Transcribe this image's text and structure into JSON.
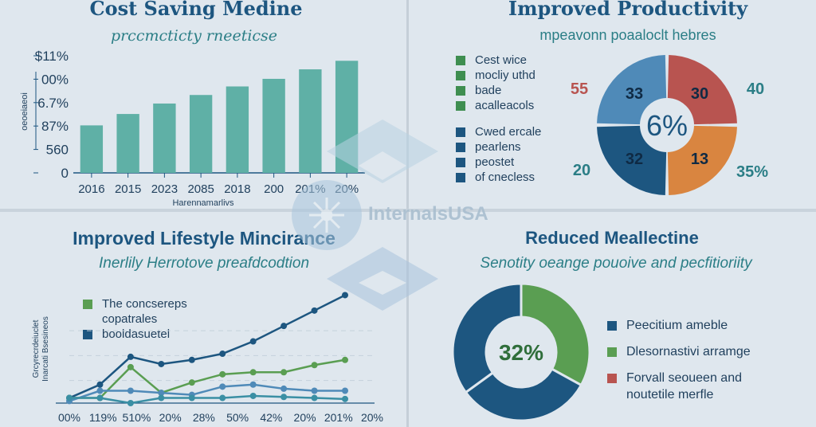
{
  "watermark": {
    "text": "InternalsUSA"
  },
  "colors": {
    "teal": "#5fb0a6",
    "navy": "#1d5680",
    "green": "#5a9e52",
    "orange": "#d98540",
    "red": "#b85450",
    "blue": "#4f8ab8"
  },
  "chart_data": [
    {
      "type": "bar",
      "title": "Cost Saving Medine",
      "subtitle": "prccmcticty rneeticse",
      "xlabel": "Harennamarlivs",
      "ylabel": "oeoeiaeoi",
      "ytick_labels": [
        "$11%",
        "00%",
        "6.7%",
        "87%",
        "560",
        "0"
      ],
      "categories": [
        "2016",
        "2015",
        "2023",
        "2085",
        "2018",
        "200",
        "201%",
        "20%"
      ],
      "values": [
        0.5,
        0.62,
        0.73,
        0.82,
        0.91,
        0.99,
        1.09,
        1.18
      ],
      "ylim": [
        0,
        1.3
      ]
    },
    {
      "type": "pie",
      "title": "Improved Productivity",
      "subtitle": "mpeavonn poaaloclt hebres",
      "center_label": "6%",
      "slices": [
        {
          "label": "30",
          "value": 25,
          "color": "#b85450"
        },
        {
          "label": "13",
          "value": 25,
          "color": "#d98540"
        },
        {
          "label": "32",
          "value": 25,
          "color": "#1d5680"
        },
        {
          "label": "33",
          "value": 25,
          "color": "#4f8ab8"
        }
      ],
      "outer_labels": [
        "55",
        "40",
        "35%",
        "20"
      ],
      "legend": [
        {
          "label": "Cest wice",
          "color": "#3e8e50"
        },
        {
          "label": "mocliy uthd",
          "color": "#3e8e50"
        },
        {
          "label": "bade",
          "color": "#3e8e50"
        },
        {
          "label": "acalleacols",
          "color": "#3e8e50"
        },
        {
          "label": "Cwed ercale",
          "color": "#1d5680"
        },
        {
          "label": "pearlens",
          "color": "#1d5680"
        },
        {
          "label": "peostet",
          "color": "#1d5680"
        },
        {
          "label": "of cnecless",
          "color": "#1d5680"
        }
      ]
    },
    {
      "type": "line",
      "title": "Improved Lifestyle Mincirance",
      "subtitle": "Inerlily Herrotove preafdcodtion",
      "ylabel": [
        "Grcyrecrdeiuclet",
        "Inarcati Bsesineos"
      ],
      "categories": [
        "00%",
        "119%",
        "510%",
        "20%",
        "28%",
        "50%",
        "42%",
        "20%",
        "201%",
        "20%"
      ],
      "series": [
        {
          "color": "#1d5680",
          "values": [
            0.05,
            0.18,
            0.45,
            0.38,
            0.42,
            0.48,
            0.6,
            0.75,
            0.9,
            1.05
          ]
        },
        {
          "color": "#5a9e52",
          "values": [
            0.05,
            0.05,
            0.35,
            0.1,
            0.2,
            0.28,
            0.3,
            0.3,
            0.37,
            0.42
          ]
        },
        {
          "color": "#4f8ab8",
          "values": [
            0.02,
            0.12,
            0.12,
            0.1,
            0.08,
            0.16,
            0.18,
            0.14,
            0.12,
            0.12
          ]
        },
        {
          "color": "#3a8fa4",
          "values": [
            0.05,
            0.05,
            0.0,
            0.05,
            0.05,
            0.05,
            0.07,
            0.06,
            0.05,
            0.04
          ]
        }
      ],
      "ylim": [
        0,
        1.1
      ],
      "legend": [
        {
          "label": "The concsereps",
          "color": "#5a9e52"
        },
        {
          "label": "copatrales",
          "color": null
        },
        {
          "label": "booldasuetel",
          "color": "#1d5680"
        }
      ]
    },
    {
      "type": "pie",
      "title": "Reduced Meallectine",
      "subtitle": "Senotity oeange pouoive and pecfitioriity",
      "center_label": "32%",
      "slices": [
        {
          "label": "",
          "value": 33,
          "color": "#5a9e52"
        },
        {
          "label": "",
          "value": 32,
          "color": "#1d5680"
        },
        {
          "label": "",
          "value": 35,
          "color": "#1d5680"
        }
      ],
      "legend": [
        {
          "label": "Peecitium ameble",
          "color": "#1d5680"
        },
        {
          "label": "Dlesornastivi arramge",
          "color": "#5a9e52"
        },
        {
          "label": "Forvall seoueen and",
          "color": "#b85450"
        },
        {
          "label": "noutetile merfle",
          "color": null
        }
      ]
    }
  ]
}
